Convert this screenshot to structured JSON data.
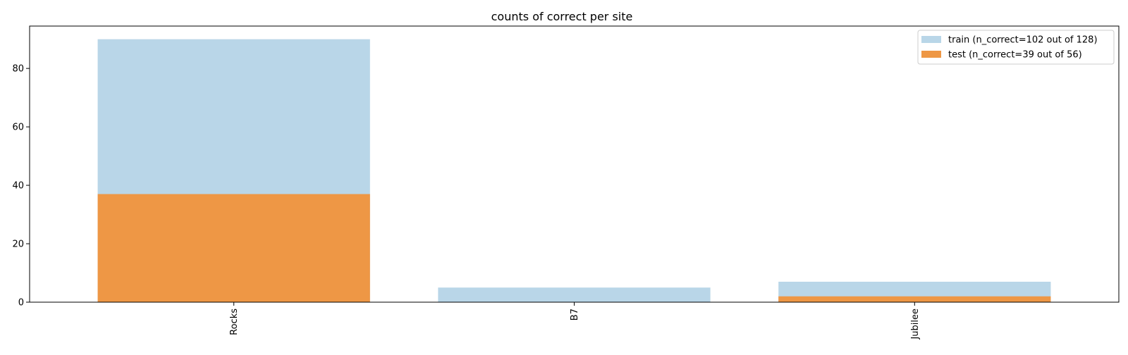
{
  "chart_data": {
    "type": "bar",
    "title": "counts of correct per site",
    "xlabel": "",
    "ylabel": "",
    "categories": [
      "Rocks",
      "B7",
      "Jubilee"
    ],
    "series": [
      {
        "name": "train (n_correct=102 out of 128)",
        "values": [
          90,
          5,
          7
        ],
        "color": "#b9d6e8"
      },
      {
        "name": "test (n_correct=39 out of 56)",
        "values": [
          37,
          0,
          2
        ],
        "color": "#ee9745"
      }
    ],
    "ylim": [
      0,
      94.5
    ],
    "yticks": [
      0,
      20,
      40,
      60,
      80
    ],
    "grid": false,
    "legend": "top-right",
    "overlap": true
  }
}
